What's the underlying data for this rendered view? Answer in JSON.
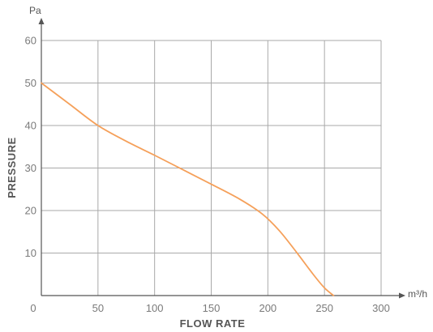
{
  "chart_data": {
    "type": "line",
    "title": "",
    "xlabel": "FLOW RATE",
    "ylabel": "PRESSURE",
    "x_unit": "m³/h",
    "y_unit": "Pa",
    "xlim": [
      0,
      300
    ],
    "ylim": [
      0,
      60
    ],
    "x_ticks": [
      0,
      50,
      100,
      150,
      200,
      250,
      300
    ],
    "y_ticks": [
      10,
      20,
      30,
      40,
      50,
      60
    ],
    "grid": true,
    "series": [
      {
        "color": "#f5a05a",
        "x": [
          0,
          25,
          50,
          75,
          100,
          125,
          150,
          175,
          195,
          210,
          225,
          240,
          250,
          258
        ],
        "y": [
          50,
          45,
          40,
          36.3,
          33,
          29.6,
          26.2,
          22.7,
          19.2,
          15.3,
          10.3,
          5,
          1.8,
          0
        ]
      }
    ]
  }
}
